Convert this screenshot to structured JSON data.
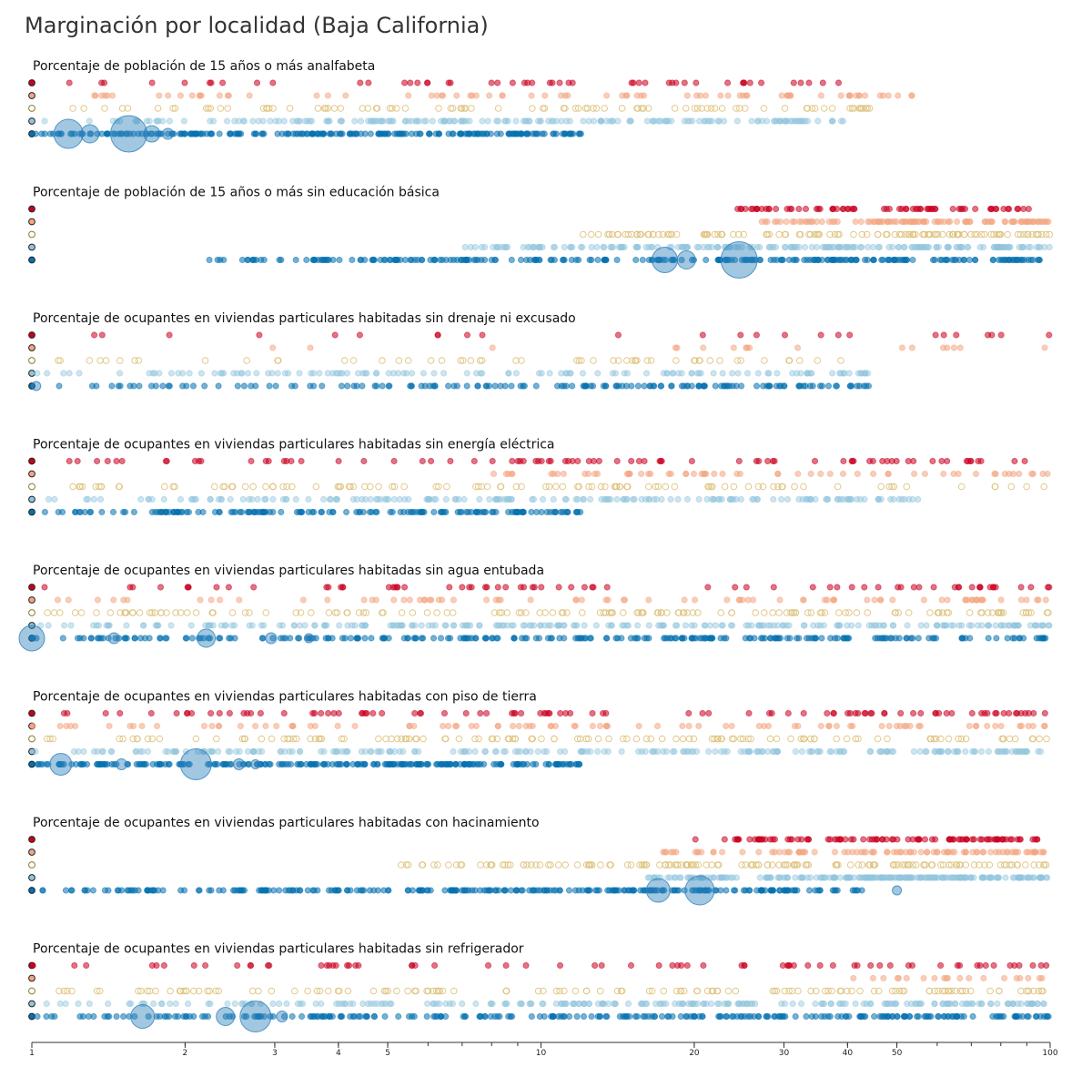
{
  "title": "Marginación por localidad (Baja California)",
  "colors": {
    "muy_alto": "#ca0020",
    "alto": "#f4a582",
    "medio": "#dfc27d",
    "bajo": "#92c5de",
    "muy_bajo": "#0571b0",
    "bubble": "#3182bd",
    "marker_stroke": "#222222"
  },
  "chart_data": {
    "type": "scatter",
    "scale": "log",
    "xlim": [
      1,
      100
    ],
    "levels": [
      "muy_alto",
      "alto",
      "medio",
      "bajo",
      "muy_bajo"
    ],
    "ticks": [
      {
        "value": 1,
        "label": "1"
      },
      {
        "value": 2,
        "label": "2"
      },
      {
        "value": 3,
        "label": "3"
      },
      {
        "value": 4,
        "label": "4"
      },
      {
        "value": 5,
        "label": "5"
      },
      {
        "value": 10,
        "label": "10"
      },
      {
        "value": 20,
        "label": "20"
      },
      {
        "value": 30,
        "label": "30"
      },
      {
        "value": 40,
        "label": "40"
      },
      {
        "value": 50,
        "label": "50"
      },
      {
        "value": 100,
        "label": "100"
      }
    ],
    "minor_ticks": [
      6,
      7,
      8,
      9,
      60,
      70,
      80,
      90
    ],
    "rows": [
      {
        "id": "analfabeta",
        "title": "Porcentaje de población de 15 años o más analfabeta",
        "range": {
          "muy_alto": [
            1,
            40
          ],
          "alto": [
            1,
            60
          ],
          "medio": [
            1,
            45
          ],
          "bajo": [
            1,
            40
          ],
          "muy_bajo": [
            1,
            12
          ]
        },
        "counts": {
          "muy_alto": 50,
          "alto": 75,
          "medio": 90,
          "bajo": 180,
          "muy_bajo": 220
        },
        "big": [
          {
            "value": 1.18,
            "size": 1.6
          },
          {
            "value": 1.3,
            "size": 1.0
          },
          {
            "value": 1.55,
            "size": 2.0
          },
          {
            "value": 1.72,
            "size": 0.9
          },
          {
            "value": 1.85,
            "size": 0.6
          }
        ]
      },
      {
        "id": "educacion_basica",
        "title": "Porcentaje de población de 15 años o más sin educación básica",
        "range": {
          "muy_alto": [
            24,
            100
          ],
          "alto": [
            26,
            100
          ],
          "medio": [
            12,
            100
          ],
          "bajo": [
            7,
            100
          ],
          "muy_bajo": [
            2.2,
            100
          ]
        },
        "counts": {
          "muy_alto": 70,
          "alto": 100,
          "medio": 120,
          "bajo": 200,
          "muy_bajo": 260
        },
        "big": [
          {
            "value": 17.5,
            "size": 1.4
          },
          {
            "value": 19.3,
            "size": 1.0
          },
          {
            "value": 24.5,
            "size": 2.0
          }
        ]
      },
      {
        "id": "drenaje",
        "title": "Porcentaje de ocupantes en viviendas particulares habitadas sin drenaje ni excusado",
        "range": {
          "muy_alto": [
            1,
            100
          ],
          "alto": [
            1,
            100
          ],
          "medio": [
            1,
            40
          ],
          "bajo": [
            1,
            45
          ],
          "muy_bajo": [
            1,
            45
          ]
        },
        "counts": {
          "muy_alto": 25,
          "alto": 18,
          "medio": 55,
          "bajo": 120,
          "muy_bajo": 150
        },
        "big": [
          {
            "value": 1.02,
            "size": 0.5
          }
        ]
      },
      {
        "id": "energia",
        "title": "Porcentaje de ocupantes en viviendas particulares habitadas sin energía eléctrica",
        "range": {
          "muy_alto": [
            1,
            100
          ],
          "alto": [
            7,
            100
          ],
          "medio": [
            1,
            100
          ],
          "bajo": [
            1,
            55
          ],
          "muy_bajo": [
            1,
            12
          ]
        },
        "counts": {
          "muy_alto": 80,
          "alto": 60,
          "medio": 100,
          "bajo": 170,
          "muy_bajo": 150
        },
        "big": []
      },
      {
        "id": "agua",
        "title": "Porcentaje de ocupantes en viviendas particulares habitadas sin agua entubada",
        "range": {
          "muy_alto": [
            1,
            100
          ],
          "alto": [
            1,
            100
          ],
          "medio": [
            1,
            100
          ],
          "bajo": [
            1,
            100
          ],
          "muy_bajo": [
            1,
            100
          ]
        },
        "counts": {
          "muy_alto": 70,
          "alto": 80,
          "medio": 140,
          "bajo": 220,
          "muy_bajo": 240
        },
        "big": [
          {
            "value": 1.0,
            "size": 1.4
          },
          {
            "value": 1.45,
            "size": 0.6
          },
          {
            "value": 2.2,
            "size": 1.0
          },
          {
            "value": 2.95,
            "size": 0.6
          },
          {
            "value": 3.5,
            "size": 0.5
          }
        ]
      },
      {
        "id": "piso_tierra",
        "title": "Porcentaje de ocupantes en viviendas particulares habitadas con piso de tierra",
        "range": {
          "muy_alto": [
            1,
            100
          ],
          "alto": [
            1,
            100
          ],
          "medio": [
            1,
            100
          ],
          "bajo": [
            1,
            100
          ],
          "muy_bajo": [
            1,
            12
          ]
        },
        "counts": {
          "muy_alto": 95,
          "alto": 90,
          "medio": 120,
          "bajo": 220,
          "muy_bajo": 230
        },
        "big": [
          {
            "value": 1.14,
            "size": 1.2
          },
          {
            "value": 1.5,
            "size": 0.6
          },
          {
            "value": 2.1,
            "size": 1.7
          },
          {
            "value": 2.55,
            "size": 0.6
          },
          {
            "value": 2.75,
            "size": 0.5
          }
        ]
      },
      {
        "id": "hacinamiento",
        "title": "Porcentaje de ocupantes en viviendas particulares habitadas con hacinamiento",
        "range": {
          "muy_alto": [
            19,
            100
          ],
          "alto": [
            17,
            100
          ],
          "medio": [
            5,
            100
          ],
          "bajo": [
            16,
            100
          ],
          "muy_bajo": [
            1,
            43
          ]
        },
        "counts": {
          "muy_alto": 95,
          "alto": 90,
          "medio": 150,
          "bajo": 220,
          "muy_bajo": 260
        },
        "big": [
          {
            "value": 17.0,
            "size": 1.3
          },
          {
            "value": 20.5,
            "size": 1.6
          },
          {
            "value": 50.0,
            "size": 0.5
          }
        ]
      },
      {
        "id": "refrigerador",
        "title": "Porcentaje de ocupantes en viviendas particulares habitadas sin refrigerador",
        "range": {
          "muy_alto": [
            1,
            100
          ],
          "alto": [
            40,
            100
          ],
          "medio": [
            1,
            100
          ],
          "bajo": [
            1,
            100
          ],
          "muy_bajo": [
            1,
            100
          ]
        },
        "counts": {
          "muy_alto": 70,
          "alto": 20,
          "medio": 130,
          "bajo": 220,
          "muy_bajo": 260
        },
        "big": [
          {
            "value": 1.65,
            "size": 1.3
          },
          {
            "value": 2.4,
            "size": 1.0
          },
          {
            "value": 2.75,
            "size": 1.7
          },
          {
            "value": 3.1,
            "size": 0.6
          }
        ]
      }
    ]
  }
}
